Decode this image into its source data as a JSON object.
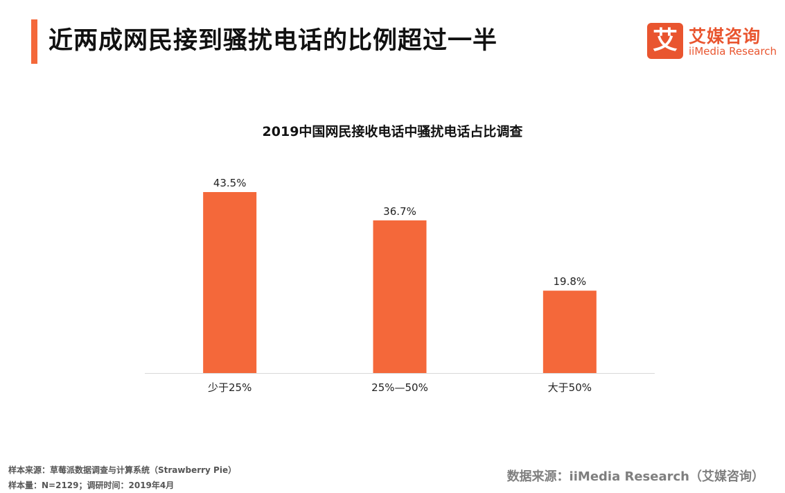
{
  "header": {
    "title": "近两成网民接到骚扰电话的比例超过一半"
  },
  "logo": {
    "mark": "艾",
    "name_cn": "艾媒咨询",
    "name_en": "iiMedia Research"
  },
  "colors": {
    "accent": "#f4683a",
    "bar": "#f4683a",
    "brand": "#e9552f"
  },
  "chart_data": {
    "type": "bar",
    "title": "2019中国网民接收电话中骚扰电话占比调查",
    "categories": [
      "少于25%",
      "25%—50%",
      "大于50%"
    ],
    "values": [
      43.5,
      36.7,
      19.8
    ],
    "value_labels": [
      "43.5%",
      "36.7%",
      "19.8%"
    ],
    "xlabel": "",
    "ylabel": "",
    "ylim": [
      0,
      45
    ],
    "grid": false,
    "legend": "none"
  },
  "footer": {
    "sample_source": "样本来源：草莓派数据调查与计算系统（Strawberry Pie）",
    "sample_size": "样本量：N=2129；调研时间：2019年4月",
    "data_source": "数据来源：iiMedia Research（艾媒咨询）"
  }
}
